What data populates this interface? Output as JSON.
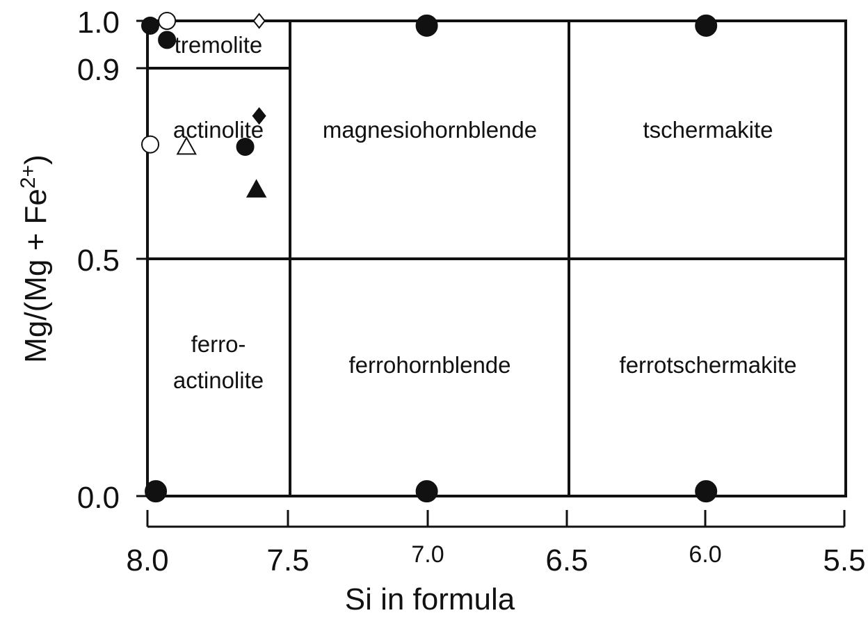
{
  "chart_data": {
    "type": "scatter",
    "title": "",
    "xlabel": "Si in formula",
    "ylabel": "Mg/(Mg + Fe2+)",
    "ylabel_parts": {
      "base": "Mg/(Mg + Fe",
      "sup": "2+",
      "end": ")"
    },
    "xlim": [
      8.0,
      5.5
    ],
    "ylim": [
      0.0,
      1.0
    ],
    "x_ticks": [
      "8.0",
      "7.5",
      "7.0",
      "6.5",
      "6.0",
      "5.5"
    ],
    "y_ticks": [
      "0.0",
      "0.5",
      "0.9",
      "1.0"
    ],
    "grid": false,
    "field_labels": [
      "tremolite",
      "actinolite",
      "magnesiohornblende",
      "tschermakite",
      "ferro-",
      "actinolite",
      "ferrohornblende",
      "ferrotschermakite"
    ],
    "points": [
      {
        "x": 7.93,
        "y": 1.0,
        "marker": "circle-open"
      },
      {
        "x": 7.6,
        "y": 1.0,
        "marker": "diamond-open"
      },
      {
        "x": 7.99,
        "y": 0.99,
        "marker": "circle-filled"
      },
      {
        "x": 7.93,
        "y": 0.96,
        "marker": "circle-filled"
      },
      {
        "x": 7.0,
        "y": 0.99,
        "marker": "circle-filled"
      },
      {
        "x": 6.0,
        "y": 0.99,
        "marker": "circle-filled"
      },
      {
        "x": 7.6,
        "y": 0.8,
        "marker": "diamond-filled"
      },
      {
        "x": 7.99,
        "y": 0.74,
        "marker": "circle-open"
      },
      {
        "x": 7.86,
        "y": 0.735,
        "marker": "triangle-open"
      },
      {
        "x": 7.65,
        "y": 0.735,
        "marker": "circle-filled"
      },
      {
        "x": 7.61,
        "y": 0.645,
        "marker": "triangle-filled"
      },
      {
        "x": 7.97,
        "y": 0.01,
        "marker": "circle-filled"
      },
      {
        "x": 7.0,
        "y": 0.01,
        "marker": "circle-filled"
      },
      {
        "x": 6.0,
        "y": 0.01,
        "marker": "circle-filled"
      }
    ]
  }
}
